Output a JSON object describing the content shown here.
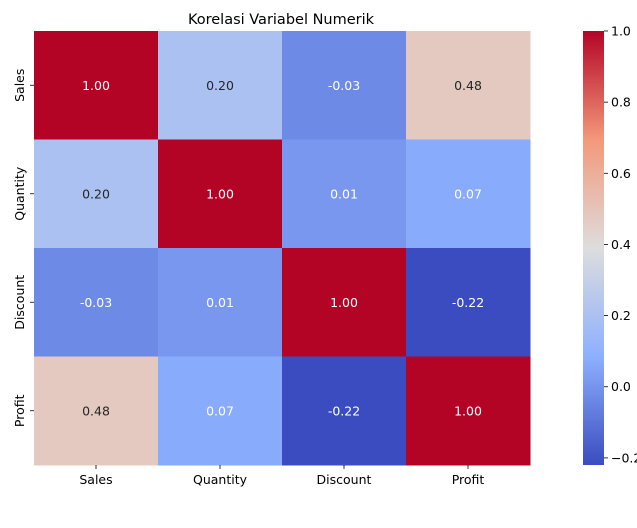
{
  "chart_data": {
    "type": "heatmap",
    "title": "Korelasi Variabel Numerik",
    "xlabel": "",
    "ylabel": "",
    "x_categories": [
      "Sales",
      "Quantity",
      "Discount",
      "Profit"
    ],
    "y_categories": [
      "Sales",
      "Quantity",
      "Discount",
      "Profit"
    ],
    "values": [
      [
        1.0,
        0.2,
        -0.03,
        0.48
      ],
      [
        0.2,
        1.0,
        0.01,
        0.07
      ],
      [
        -0.03,
        0.01,
        1.0,
        -0.22
      ],
      [
        0.48,
        0.07,
        -0.22,
        1.0
      ]
    ],
    "cell_labels": [
      [
        "1.00",
        "0.20",
        "-0.03",
        "0.48"
      ],
      [
        "0.20",
        "1.00",
        "0.01",
        "0.07"
      ],
      [
        "-0.03",
        "0.01",
        "1.00",
        "-0.22"
      ],
      [
        "0.48",
        "0.07",
        "-0.22",
        "1.00"
      ]
    ],
    "colormap": "coolwarm",
    "colorbar": {
      "range": [
        -0.22,
        1.0
      ],
      "ticks": [
        -0.2,
        0.0,
        0.2,
        0.4,
        0.6,
        0.8,
        1.0
      ],
      "tick_labels": [
        "−0.2",
        "0.0",
        "0.2",
        "0.4",
        "0.6",
        "0.8",
        "1.0"
      ]
    },
    "grid": false,
    "legend": "colorbar-right"
  }
}
